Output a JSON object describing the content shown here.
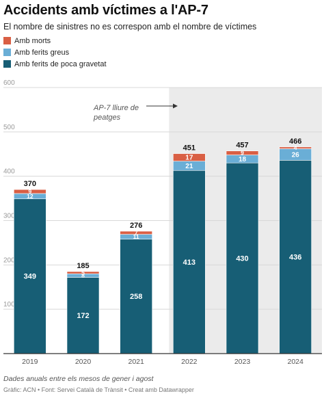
{
  "title": "Accidents amb víctimes a l'AP-7",
  "subtitle": "El nombre de sinistres no es correspon amb el nombre de víctimes",
  "legend": [
    {
      "label": "Amb morts",
      "color": "#d95f44"
    },
    {
      "label": "Amb ferits greus",
      "color": "#6aaed6"
    },
    {
      "label": "Amb ferits de poca gravetat",
      "color": "#175e75"
    }
  ],
  "annotation": "AP-7 lliure de peatges",
  "footer": {
    "note": "Dades anuals entre els mesos de gener i agost",
    "source": "Gràfic: ACN • Font: Servei Català de Trànsit • ",
    "credit": "Creat amb Datawrapper"
  },
  "chart_data": {
    "type": "bar",
    "stacked": true,
    "categories": [
      "2019",
      "2020",
      "2021",
      "2022",
      "2023",
      "2024"
    ],
    "series": [
      {
        "name": "Amb ferits de poca gravetat",
        "color": "#175e75",
        "values": [
          349,
          172,
          258,
          413,
          430,
          436
        ]
      },
      {
        "name": "Amb ferits greus",
        "color": "#6aaed6",
        "values": [
          12,
          8,
          11,
          21,
          18,
          26
        ]
      },
      {
        "name": "Amb morts",
        "color": "#d95f44",
        "values": [
          9,
          5,
          7,
          17,
          9,
          4
        ]
      }
    ],
    "totals": [
      370,
      185,
      276,
      451,
      457,
      466
    ],
    "yticks": [
      100,
      200,
      300,
      400,
      500,
      600
    ],
    "ylim": [
      0,
      600
    ],
    "highlight_from": "2022",
    "highlight_color": "#ebebeb",
    "grid": true,
    "legend_position": "top-left"
  }
}
